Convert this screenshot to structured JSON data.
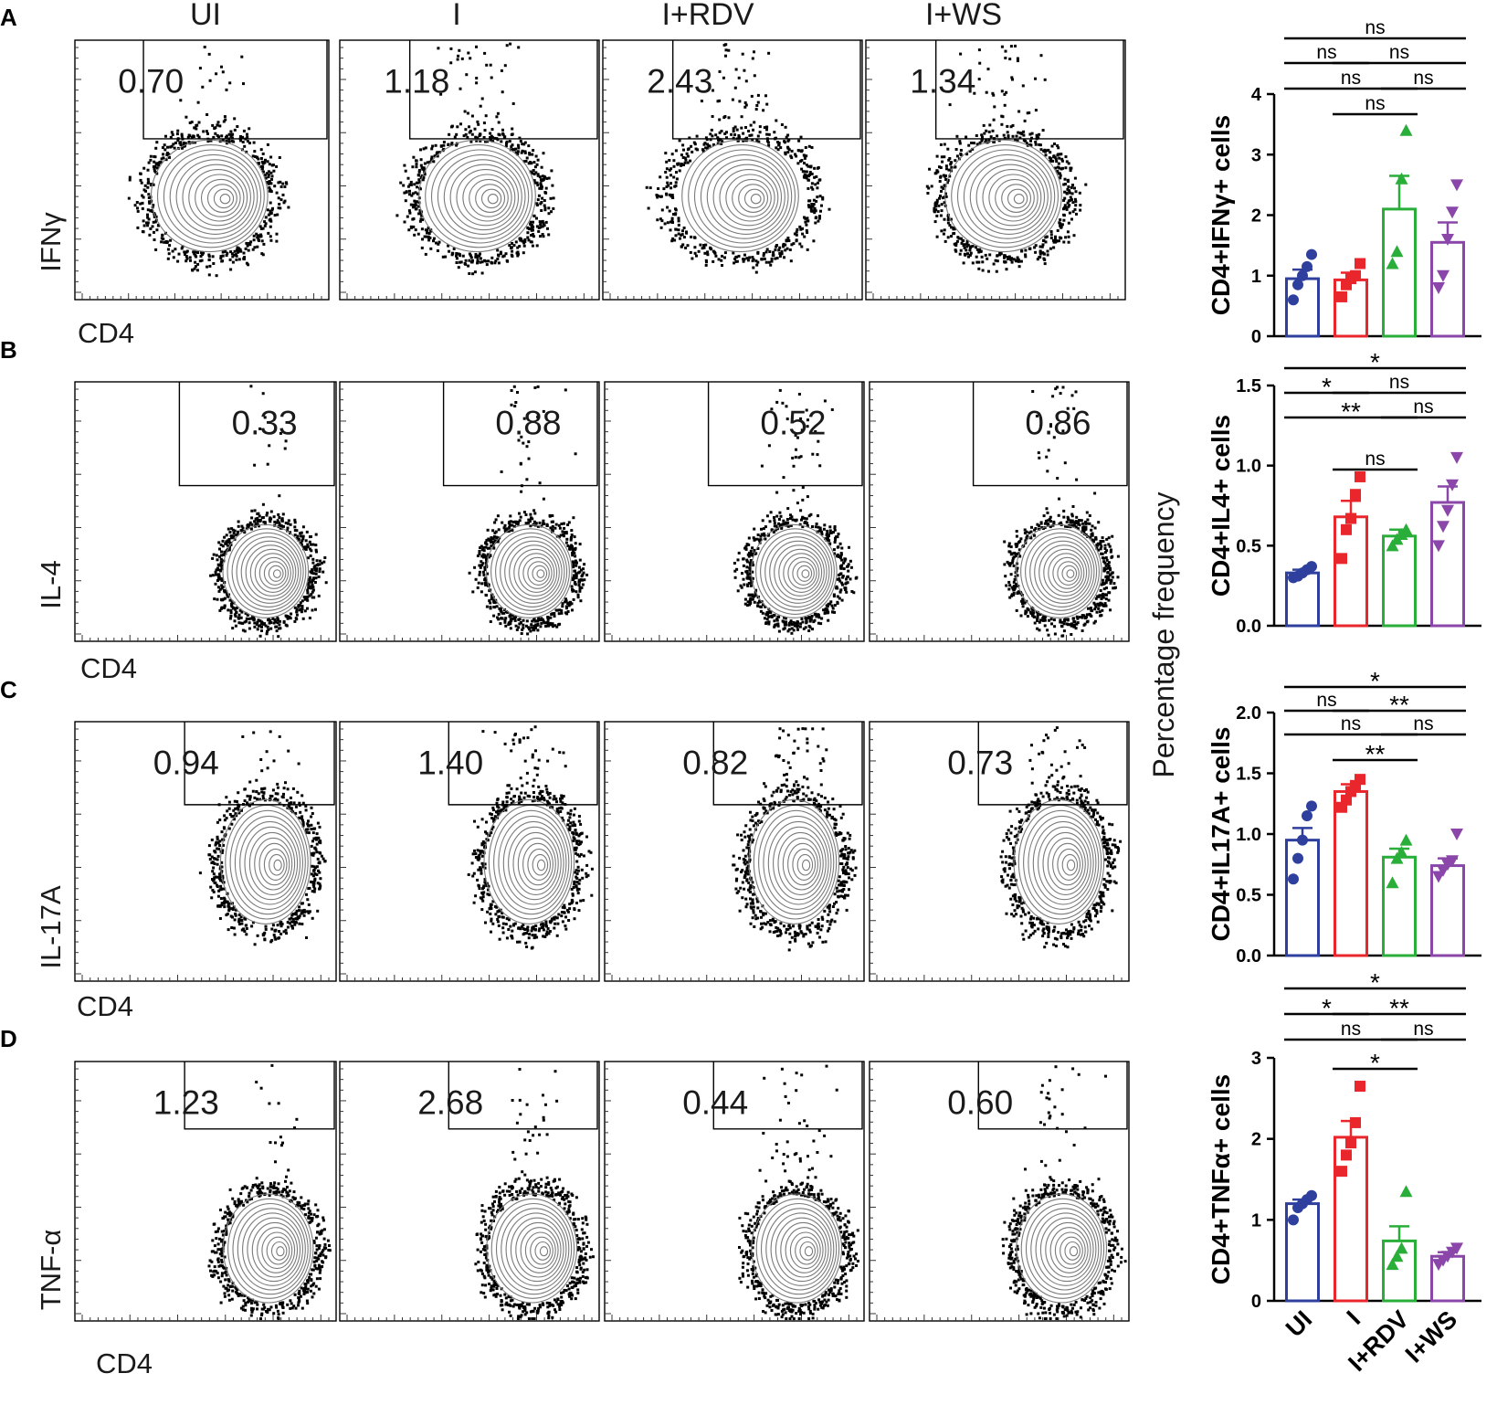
{
  "columns": [
    "UI",
    "I",
    "I+RDV",
    "I+WS"
  ],
  "x_axis_label": "CD4",
  "shared_y_label": "Percentage frequency",
  "colors": {
    "UI": "#2e3f9e",
    "I": "#e8262b",
    "I+RDV": "#2aae3a",
    "I+WS": "#8a46a8"
  },
  "panels": [
    {
      "letter": "A",
      "flow_y_label": "IFNγ",
      "gate_values": [
        "0.70",
        "1.18",
        "2.43",
        "1.34"
      ],
      "gate_shape": "upper-left",
      "bar": {
        "ylabel": "CD4+IFNγ+ cells",
        "ylim": [
          0,
          4
        ],
        "yticks": [
          "0",
          "1",
          "2",
          "3",
          "4"
        ],
        "means": [
          0.95,
          0.93,
          2.1,
          1.55
        ],
        "errors": [
          0.15,
          0.12,
          0.55,
          0.33
        ],
        "points": [
          [
            0.6,
            0.85,
            1.0,
            1.15,
            1.35
          ],
          [
            0.65,
            0.85,
            0.95,
            1.0,
            1.2
          ],
          [
            1.2,
            1.4,
            2.6,
            3.4
          ],
          [
            0.8,
            1.0,
            1.6,
            2.05,
            2.5
          ]
        ],
        "comparisons": [
          {
            "g1": 0,
            "g2": 3,
            "label": "ns",
            "level": 4
          },
          {
            "g1": 0,
            "g2": 1,
            "label": "ns",
            "level": 3
          },
          {
            "g1": 1,
            "g2": 3,
            "label": "ns",
            "level": 3
          },
          {
            "g1": 0,
            "g2": 2,
            "label": "ns",
            "level": 2
          },
          {
            "g1": 2,
            "g2": 3,
            "label": "ns",
            "level": 2
          },
          {
            "g1": 1,
            "g2": 2,
            "label": "ns",
            "level": 1
          }
        ]
      }
    },
    {
      "letter": "B",
      "flow_y_label": "IL-4",
      "gate_values": [
        "0.33",
        "0.88",
        "0.52",
        "0.86"
      ],
      "gate_shape": "upper-right",
      "bar": {
        "ylabel": "CD4+IL4+ cells",
        "ylim": [
          0,
          1.5
        ],
        "yticks": [
          "0.0",
          "0.5",
          "1.0",
          "1.5"
        ],
        "means": [
          0.33,
          0.68,
          0.56,
          0.77
        ],
        "errors": [
          0.02,
          0.1,
          0.04,
          0.1
        ],
        "points": [
          [
            0.3,
            0.31,
            0.33,
            0.35,
            0.37
          ],
          [
            0.42,
            0.6,
            0.67,
            0.82,
            0.93
          ],
          [
            0.5,
            0.54,
            0.57,
            0.6
          ],
          [
            0.5,
            0.62,
            0.72,
            0.88,
            1.05
          ]
        ],
        "comparisons": [
          {
            "g1": 0,
            "g2": 3,
            "label": "*",
            "level": 4
          },
          {
            "g1": 0,
            "g2": 1,
            "label": "*",
            "level": 3
          },
          {
            "g1": 1,
            "g2": 3,
            "label": "ns",
            "level": 3
          },
          {
            "g1": 0,
            "g2": 2,
            "label": "**",
            "level": 2
          },
          {
            "g1": 2,
            "g2": 3,
            "label": "ns",
            "level": 2
          },
          {
            "g1": 1,
            "g2": 2,
            "label": "ns",
            "level": 1
          }
        ]
      }
    },
    {
      "letter": "C",
      "flow_y_label": "IL-17A",
      "gate_values": [
        "0.94",
        "1.40",
        "0.82",
        "0.73"
      ],
      "gate_shape": "upper-left",
      "bar": {
        "ylabel": "CD4+IL17A+ cells",
        "ylim": [
          0,
          2.0
        ],
        "yticks": [
          "0.0",
          "0.5",
          "1.0",
          "1.5",
          "2.0"
        ],
        "means": [
          0.95,
          1.35,
          0.81,
          0.74
        ],
        "errors": [
          0.1,
          0.06,
          0.07,
          0.06
        ],
        "points": [
          [
            0.63,
            0.8,
            0.95,
            1.15,
            1.23
          ],
          [
            1.22,
            1.28,
            1.35,
            1.4,
            1.45
          ],
          [
            0.6,
            0.8,
            0.85,
            0.95
          ],
          [
            0.65,
            0.7,
            0.75,
            0.78,
            1.0
          ]
        ],
        "comparisons": [
          {
            "g1": 0,
            "g2": 3,
            "label": "*",
            "level": 4
          },
          {
            "g1": 0,
            "g2": 1,
            "label": "ns",
            "level": 3
          },
          {
            "g1": 1,
            "g2": 3,
            "label": "**",
            "level": 3
          },
          {
            "g1": 0,
            "g2": 2,
            "label": "ns",
            "level": 2
          },
          {
            "g1": 2,
            "g2": 3,
            "label": "ns",
            "level": 2
          },
          {
            "g1": 1,
            "g2": 2,
            "label": "**",
            "level": 1
          }
        ]
      }
    },
    {
      "letter": "D",
      "flow_y_label": "TNF-α",
      "gate_values": [
        "1.23",
        "2.68",
        "0.44",
        "0.60"
      ],
      "gate_shape": "upper-left",
      "bar": {
        "ylabel": "CD4+TNFα+ cells",
        "ylim": [
          0,
          3
        ],
        "yticks": [
          "0",
          "1",
          "2",
          "3"
        ],
        "means": [
          1.2,
          2.02,
          0.74,
          0.55
        ],
        "errors": [
          0.05,
          0.2,
          0.18,
          0.05
        ],
        "points": [
          [
            1.0,
            1.15,
            1.2,
            1.25,
            1.3
          ],
          [
            1.6,
            1.8,
            1.95,
            2.2,
            2.65
          ],
          [
            0.45,
            0.55,
            0.65,
            1.35
          ],
          [
            0.45,
            0.5,
            0.55,
            0.6,
            0.65
          ]
        ],
        "comparisons": [
          {
            "g1": 0,
            "g2": 3,
            "label": "*",
            "level": 4
          },
          {
            "g1": 0,
            "g2": 1,
            "label": "*",
            "level": 3
          },
          {
            "g1": 1,
            "g2": 3,
            "label": "**",
            "level": 3
          },
          {
            "g1": 0,
            "g2": 2,
            "label": "ns",
            "level": 2
          },
          {
            "g1": 2,
            "g2": 3,
            "label": "ns",
            "level": 2
          },
          {
            "g1": 1,
            "g2": 2,
            "label": "*",
            "level": 1
          }
        ]
      }
    }
  ],
  "chart_data": [
    {
      "type": "bar",
      "title": "CD4+IFNγ+ cells",
      "categories": [
        "UI",
        "I",
        "I+RDV",
        "I+WS"
      ],
      "values": [
        0.95,
        0.93,
        2.1,
        1.55
      ],
      "ylabel": "CD4+IFNγ+ cells",
      "ylim": [
        0,
        4
      ]
    },
    {
      "type": "bar",
      "title": "CD4+IL4+ cells",
      "categories": [
        "UI",
        "I",
        "I+RDV",
        "I+WS"
      ],
      "values": [
        0.33,
        0.68,
        0.56,
        0.77
      ],
      "ylabel": "CD4+IL4+ cells",
      "ylim": [
        0,
        1.5
      ]
    },
    {
      "type": "bar",
      "title": "CD4+IL17A+ cells",
      "categories": [
        "UI",
        "I",
        "I+RDV",
        "I+WS"
      ],
      "values": [
        0.95,
        1.35,
        0.81,
        0.74
      ],
      "ylabel": "CD4+IL17A+ cells",
      "ylim": [
        0,
        2.0
      ]
    },
    {
      "type": "bar",
      "title": "CD4+TNFα+ cells",
      "categories": [
        "UI",
        "I",
        "I+RDV",
        "I+WS"
      ],
      "values": [
        1.2,
        2.02,
        0.74,
        0.55
      ],
      "ylabel": "CD4+TNFα+ cells",
      "ylim": [
        0,
        3
      ]
    }
  ]
}
